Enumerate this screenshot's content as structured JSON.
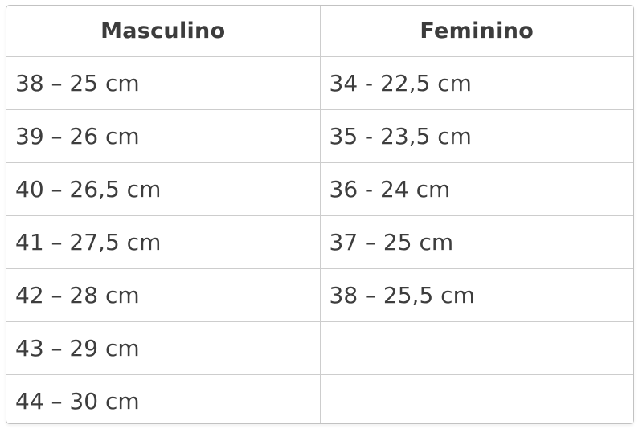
{
  "chart_data": {
    "type": "table",
    "columns": [
      "Masculino",
      "Feminino"
    ],
    "rows": [
      [
        "38 – 25 cm",
        "34 - 22,5 cm"
      ],
      [
        "39 – 26 cm",
        "35 - 23,5 cm"
      ],
      [
        "40 – 26,5 cm",
        "36 - 24 cm"
      ],
      [
        "41 – 27,5 cm",
        "37 – 25 cm"
      ],
      [
        "42 – 28 cm",
        "38 – 25,5 cm"
      ],
      [
        "43 – 29 cm",
        ""
      ],
      [
        "44 – 30 cm",
        ""
      ]
    ],
    "parsed": {
      "masculino": [
        {
          "size": 38,
          "cm": 25
        },
        {
          "size": 39,
          "cm": 26
        },
        {
          "size": 40,
          "cm": 26.5
        },
        {
          "size": 41,
          "cm": 27.5
        },
        {
          "size": 42,
          "cm": 28
        },
        {
          "size": 43,
          "cm": 29
        },
        {
          "size": 44,
          "cm": 30
        }
      ],
      "feminino": [
        {
          "size": 34,
          "cm": 22.5
        },
        {
          "size": 35,
          "cm": 23.5
        },
        {
          "size": 36,
          "cm": 24
        },
        {
          "size": 37,
          "cm": 25
        },
        {
          "size": 38,
          "cm": 25.5
        }
      ]
    },
    "layout": {
      "grid": "full-borders",
      "header_row": true,
      "empty_cells": [
        [
          5,
          1
        ],
        [
          6,
          1
        ]
      ]
    }
  },
  "colors": {
    "border_outer": "#c2c2c2",
    "border_inner": "#cdcdcd",
    "text": "#3d3d3d",
    "background": "#ffffff"
  }
}
